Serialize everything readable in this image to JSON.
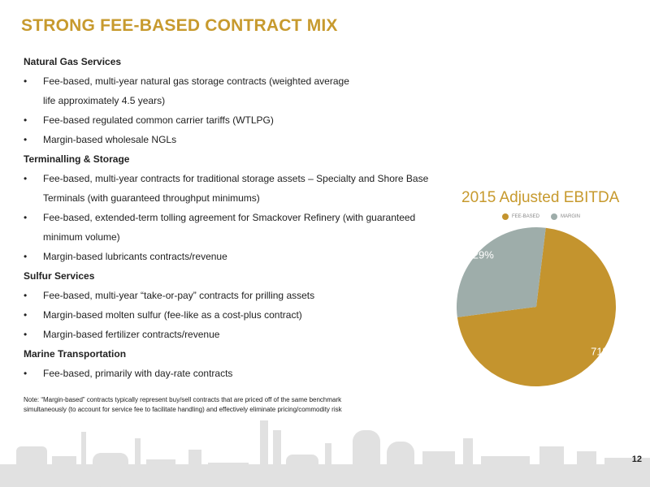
{
  "title": "STRONG FEE-BASED CONTRACT MIX",
  "sections": [
    {
      "heading": "Natural Gas Services",
      "bullets": [
        [
          "Fee-based, multi-year natural gas storage contracts (weighted average",
          "life approximately 4.5 years)"
        ],
        [
          "Fee-based regulated common carrier tariffs (WTLPG)"
        ],
        [
          "Margin-based wholesale NGLs"
        ]
      ]
    },
    {
      "heading": "Terminalling & Storage",
      "bullets": [
        [
          "Fee-based, multi-year contracts for traditional storage assets – Specialty and Shore Base",
          "Terminals (with guaranteed throughput minimums)"
        ],
        [
          "Fee-based, extended-term tolling agreement for Smackover Refinery (with guaranteed",
          "minimum volume)"
        ],
        [
          "Margin-based lubricants contracts/revenue"
        ]
      ]
    },
    {
      "heading": "Sulfur Services",
      "bullets": [
        [
          "Fee-based, multi-year “take-or-pay” contracts for prilling assets"
        ],
        [
          "Margin-based molten sulfur (fee-like as a cost-plus contract)"
        ],
        [
          "Margin-based fertilizer contracts/revenue"
        ]
      ]
    },
    {
      "heading": "Marine Transportation",
      "bullets": [
        [
          "Fee-based, primarily with day-rate contracts"
        ]
      ]
    }
  ],
  "bullet_symbol": "•",
  "note": {
    "line1": "Note:  “Margin-based” contracts typically represent buy/sell contracts that are priced off of the same benchmark",
    "line2": "simultaneously (to account for service fee to facilitate handling) and effectively eliminate pricing/commodity risk"
  },
  "page_number": "12",
  "chart_data": {
    "type": "pie",
    "title": "2015 Adjusted EBITDA",
    "legend_position": "top",
    "slices": [
      {
        "name": "FEE-BASED",
        "value": 71,
        "label": "71%",
        "color": "#c4942e"
      },
      {
        "name": "MARGIN",
        "value": 29,
        "label": "29%",
        "color": "#9eadaa"
      }
    ]
  },
  "colors": {
    "accent": "#c79a2e",
    "skyline": "#e1e1e1"
  }
}
